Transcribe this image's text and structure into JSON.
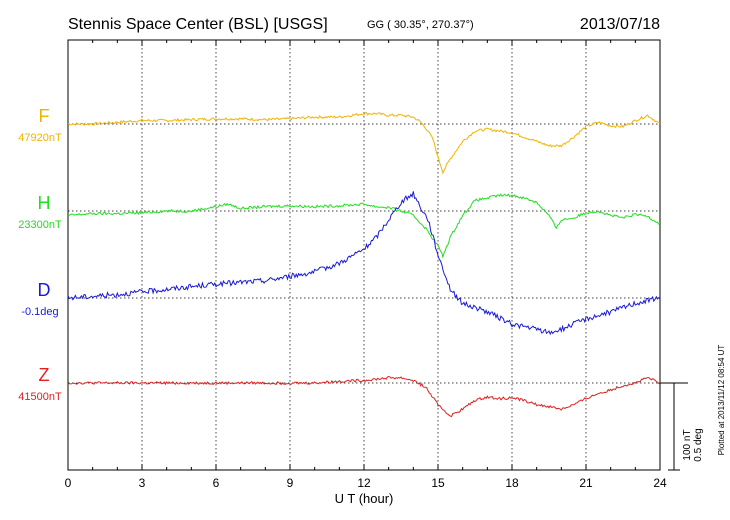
{
  "header": {
    "station": "Stennis Space Center (BSL)  [USGS]",
    "coords": "GG ( 30.35°, 270.37°)",
    "date": "2013/07/18"
  },
  "side_note": "Plotted at 2013/11/12 08:54 UT",
  "scale": {
    "nt": "100 nT",
    "deg": "0.5 deg"
  },
  "colors": {
    "F": "#f0b400",
    "H": "#22dd22",
    "D": "#1a1ad8",
    "Z": "#e02020",
    "grid": "#000000"
  },
  "chart_data": {
    "type": "line",
    "xlabel": "U T (hour)",
    "xlim": [
      0,
      24
    ],
    "xticks": [
      "0",
      "3",
      "6",
      "9",
      "12",
      "15",
      "18",
      "21",
      "24"
    ],
    "series": [
      {
        "name": "F",
        "baseline_label": "47920nT",
        "color": "#f0b400",
        "x": [
          0,
          1,
          2,
          3,
          4,
          5,
          6,
          7,
          8,
          9,
          10,
          11,
          11.5,
          12,
          12.5,
          13,
          13.5,
          14,
          14.3,
          14.6,
          14.8,
          15,
          15.2,
          15.5,
          16,
          16.5,
          17,
          17.5,
          18,
          18.5,
          19,
          19.5,
          20,
          20.5,
          21,
          21.5,
          22,
          22.5,
          23,
          23.5,
          24
        ],
        "y": [
          0,
          0,
          2,
          4,
          4,
          5,
          6,
          6,
          5,
          6,
          8,
          8,
          10,
          12,
          12,
          10,
          10,
          8,
          2,
          -8,
          -18,
          -38,
          -55,
          -40,
          -20,
          -8,
          -6,
          -8,
          -10,
          -15,
          -20,
          -25,
          -25,
          -15,
          -3,
          2,
          -2,
          -3,
          4,
          10,
          0
        ]
      },
      {
        "name": "H",
        "baseline_label": "23300nT",
        "color": "#22dd22",
        "x": [
          0,
          1,
          2,
          3,
          4,
          5,
          6,
          6.5,
          7,
          8,
          9,
          10,
          11,
          12,
          12.5,
          13,
          13.5,
          14,
          14.5,
          15,
          15.2,
          15.5,
          16,
          16.5,
          17,
          17.5,
          18,
          18.5,
          19,
          19.5,
          19.8,
          20,
          20.5,
          21,
          21.5,
          22,
          22.5,
          23,
          23.5,
          24
        ],
        "y": [
          -5,
          -3,
          -3,
          -2,
          0,
          0,
          5,
          8,
          3,
          5,
          6,
          5,
          6,
          8,
          5,
          4,
          0,
          -5,
          -20,
          -40,
          -52,
          -30,
          -5,
          12,
          15,
          18,
          18,
          15,
          10,
          -5,
          -20,
          -10,
          -8,
          -2,
          0,
          -5,
          -8,
          -4,
          -6,
          -15
        ]
      },
      {
        "name": "D",
        "baseline_label": "-0.1deg",
        "color": "#1a1ad8",
        "x": [
          0,
          2,
          4,
          6,
          8,
          10,
          11,
          12,
          12.5,
          13,
          13.5,
          14,
          14.3,
          14.6,
          15,
          15.5,
          16,
          17,
          18,
          19,
          19.5,
          20,
          21,
          22,
          23,
          24
        ],
        "y": [
          0,
          0.02,
          0.05,
          0.08,
          0.1,
          0.15,
          0.2,
          0.28,
          0.35,
          0.45,
          0.55,
          0.6,
          0.52,
          0.45,
          0.25,
          0.05,
          -0.03,
          -0.08,
          -0.15,
          -0.18,
          -0.2,
          -0.18,
          -0.12,
          -0.08,
          -0.03,
          0
        ]
      },
      {
        "name": "Z",
        "baseline_label": "41500nT",
        "color": "#e02020",
        "x": [
          0,
          2,
          4,
          6,
          8,
          10,
          11,
          12,
          13,
          13.5,
          14,
          14.5,
          15,
          15.5,
          16,
          16.5,
          17,
          17.5,
          18,
          18.5,
          19,
          19.5,
          20,
          20.5,
          21,
          21.5,
          22,
          22.5,
          23,
          23.5,
          24
        ],
        "y": [
          0,
          0,
          0,
          0,
          0,
          0,
          2,
          3,
          6,
          6,
          3,
          -5,
          -25,
          -38,
          -30,
          -20,
          -16,
          -18,
          -17,
          -20,
          -25,
          -27,
          -30,
          -25,
          -18,
          -12,
          -8,
          -3,
          0,
          6,
          0
        ]
      }
    ],
    "scale_bar": {
      "nT": 100,
      "deg": 0.5
    },
    "grid": true
  }
}
